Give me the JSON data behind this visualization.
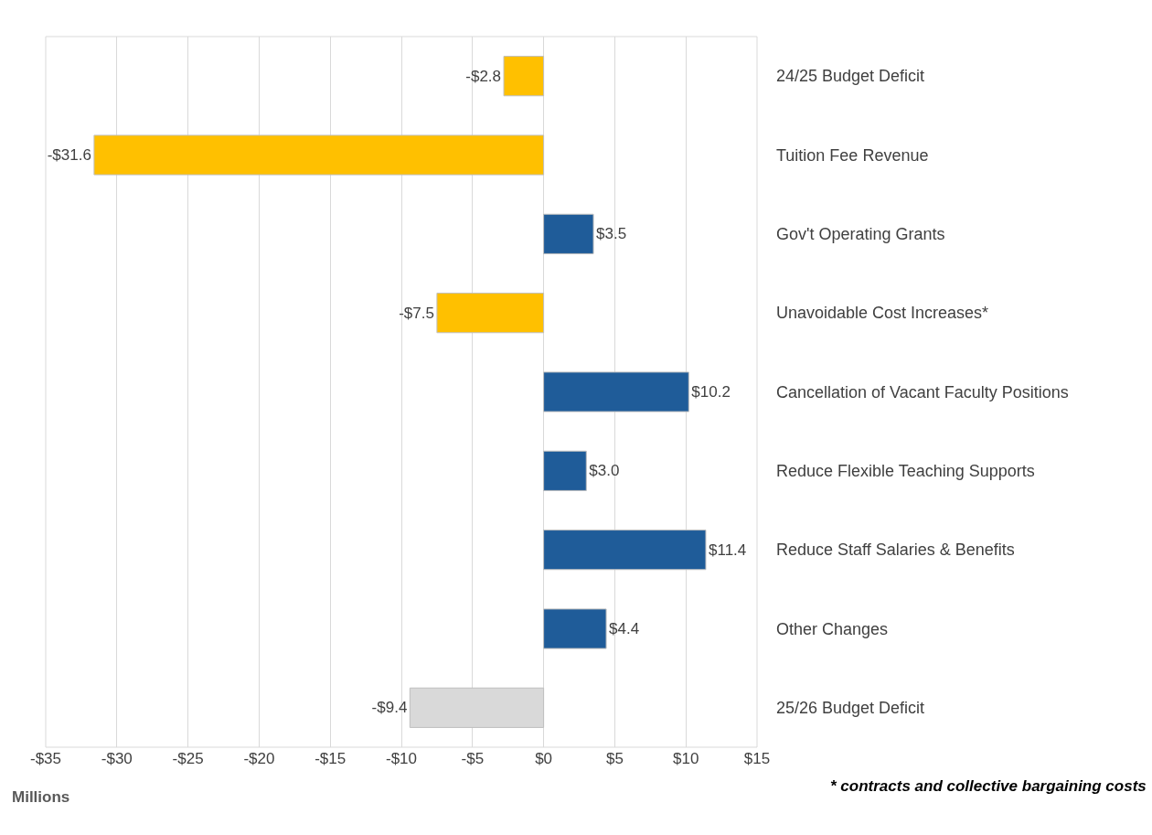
{
  "chart_data": {
    "type": "bar",
    "orientation": "horizontal",
    "categories": [
      "24/25 Budget Deficit",
      "Tuition Fee Revenue",
      "Gov't Operating Grants",
      "Unavoidable Cost Increases*",
      "Cancellation of Vacant Faculty Positions",
      "Reduce Flexible Teaching Supports",
      "Reduce Staff Salaries & Benefits",
      "Other Changes",
      "25/26 Budget Deficit"
    ],
    "values": [
      -2.8,
      -31.6,
      3.5,
      -7.5,
      10.2,
      3.0,
      11.4,
      4.4,
      -9.4
    ],
    "colors": [
      "#ffc000",
      "#ffc000",
      "#1f5c99",
      "#ffc000",
      "#1f5c99",
      "#1f5c99",
      "#1f5c99",
      "#1f5c99",
      "#d9d9d9"
    ],
    "value_labels": [
      "-$2.8",
      "-$31.6",
      "$3.5",
      "-$7.5",
      "$10.2",
      "$3.0",
      "$11.4",
      "$4.4",
      "-$9.4"
    ],
    "xlim": [
      -35,
      15
    ],
    "xticks": [
      {
        "value": -35,
        "label": "-$35"
      },
      {
        "value": -30,
        "label": "-$30"
      },
      {
        "value": -25,
        "label": "-$25"
      },
      {
        "value": -20,
        "label": "-$20"
      },
      {
        "value": -15,
        "label": "-$15"
      },
      {
        "value": -10,
        "label": "-$10"
      },
      {
        "value": -5,
        "label": "-$5"
      },
      {
        "value": 0,
        "label": "$0"
      },
      {
        "value": 5,
        "label": "$5"
      },
      {
        "value": 10,
        "label": "$10"
      },
      {
        "value": 15,
        "label": "$15"
      }
    ],
    "grid": "x",
    "xlabel": "Millions",
    "annotations": [
      "* contracts and collective bargaining costs"
    ]
  }
}
